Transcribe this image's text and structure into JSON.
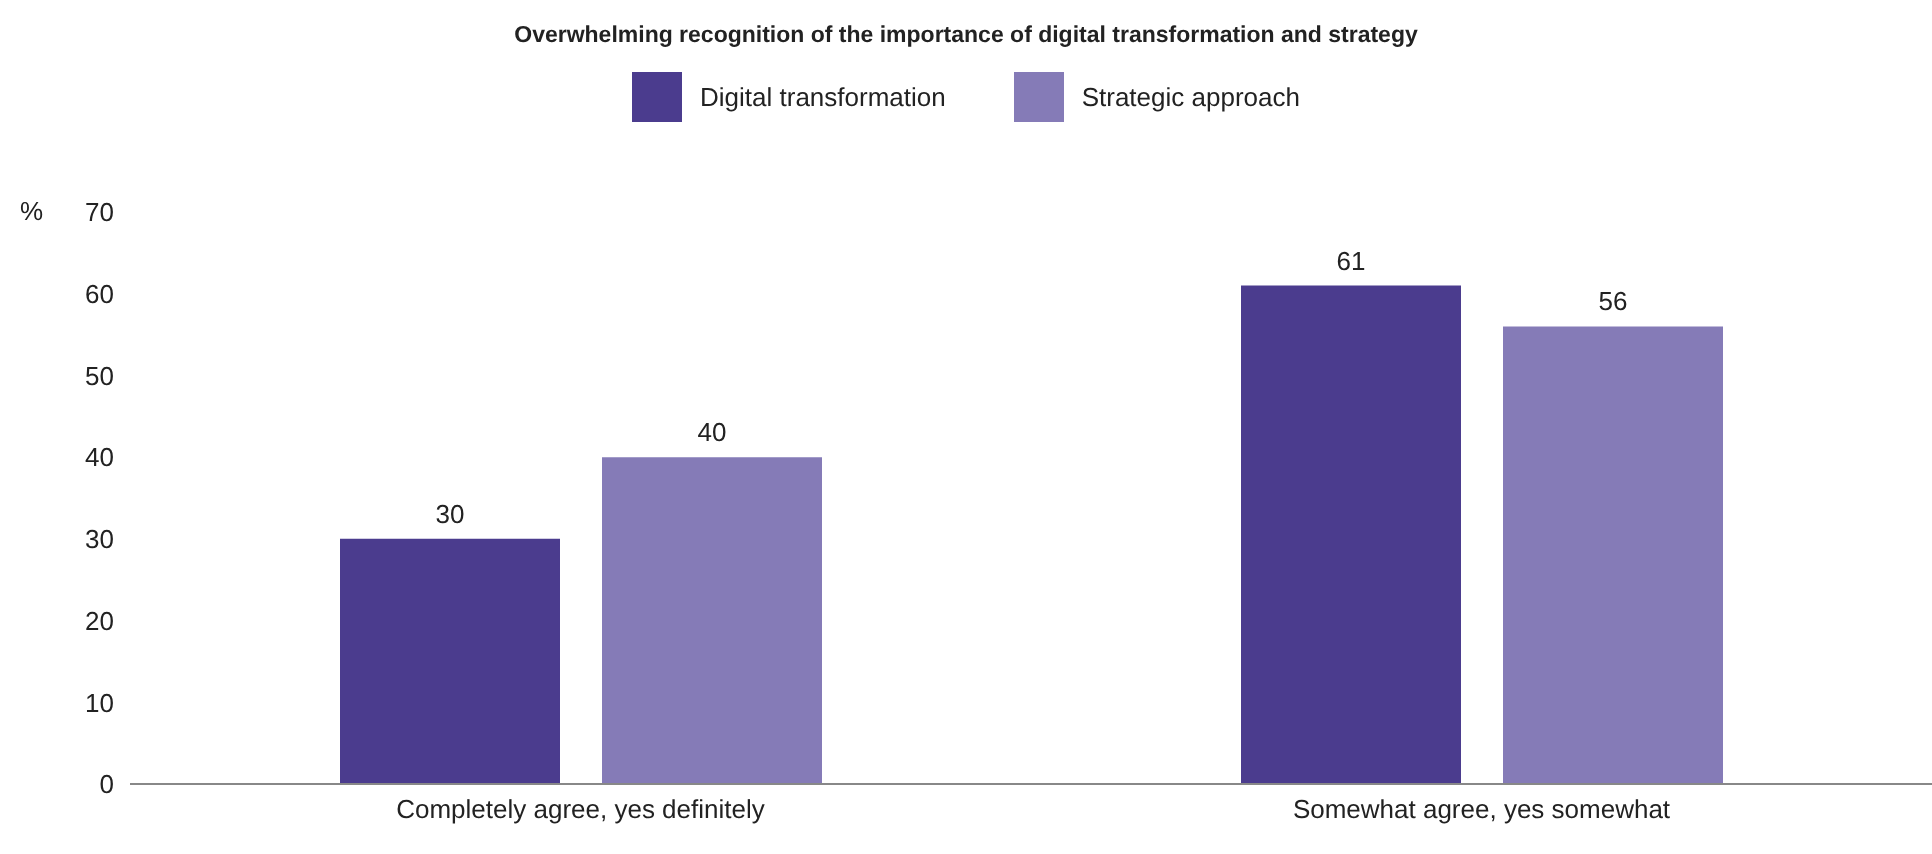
{
  "chart_data": {
    "type": "bar",
    "title": "Overwhelming recognition of the importance of digital transformation and strategy",
    "ylabel": "%",
    "categories": [
      "Completely agree, yes definitely",
      "Somewhat agree, yes somewhat"
    ],
    "series": [
      {
        "name": "Digital transformation",
        "color": "#4b3c8e",
        "values": [
          30,
          61
        ]
      },
      {
        "name": "Strategic approach",
        "color": "#857bb7",
        "values": [
          40,
          56
        ]
      }
    ],
    "ylim": [
      0,
      70
    ],
    "yticks": [
      0,
      10,
      20,
      30,
      40,
      50,
      60,
      70
    ],
    "grid": false,
    "legend": "top",
    "data_labels": true
  }
}
